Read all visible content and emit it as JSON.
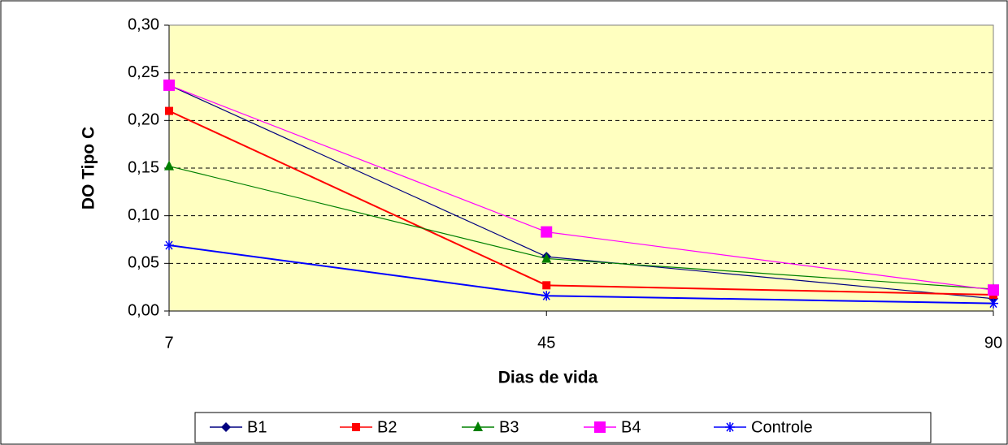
{
  "chart_data": {
    "type": "line",
    "x_label": "Dias de vida",
    "y_label": "DO Tipo C",
    "x": [
      7,
      45,
      90
    ],
    "xlim": [
      7,
      90
    ],
    "xticks": [
      7,
      45,
      90
    ],
    "ylim": [
      0,
      0.3
    ],
    "yticks": [
      {
        "value": 0,
        "label": "0,00"
      },
      {
        "value": 0.05,
        "label": "0,05"
      },
      {
        "value": 0.1,
        "label": "0,10"
      },
      {
        "value": 0.15,
        "label": "0,15"
      },
      {
        "value": 0.2,
        "label": "0,20"
      },
      {
        "value": 0.25,
        "label": "0,25"
      },
      {
        "value": 0.3,
        "label": "0,30"
      }
    ],
    "grid": true,
    "legend": "bottom",
    "series": [
      {
        "name": "B1",
        "color": "#000080",
        "marker": "diamond",
        "values": [
          0.237,
          0.057,
          0.013
        ]
      },
      {
        "name": "B2",
        "color": "#ff0000",
        "marker": "square",
        "values": [
          0.21,
          0.027,
          0.017
        ]
      },
      {
        "name": "B3",
        "color": "#008000",
        "marker": "triangle",
        "values": [
          0.152,
          0.055,
          0.023
        ]
      },
      {
        "name": "B4",
        "color": "#ff00ff",
        "marker": "bigsquare",
        "values": [
          0.237,
          0.083,
          0.022
        ]
      },
      {
        "name": "Controle",
        "color": "#0000ff",
        "marker": "asterisk",
        "values": [
          0.069,
          0.016,
          0.008
        ]
      }
    ]
  }
}
